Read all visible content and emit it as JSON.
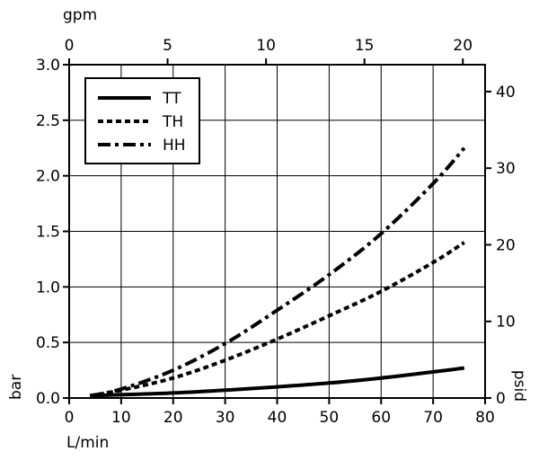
{
  "chart_data": {
    "type": "line",
    "x_axis_bottom": {
      "label": "L/min",
      "ticks": [
        0,
        10,
        20,
        30,
        40,
        50,
        60,
        70,
        80
      ],
      "range": [
        0,
        80
      ]
    },
    "x_axis_top": {
      "label": "gpm",
      "ticks": [
        0,
        5,
        10,
        15,
        20
      ],
      "range": [
        0,
        21.13
      ]
    },
    "y_axis_left": {
      "label": "bar",
      "ticks": [
        "0.0",
        "0.5",
        "1.0",
        "1.5",
        "2.0",
        "2.5",
        "3.0"
      ],
      "range": [
        0,
        3.0
      ]
    },
    "y_axis_right": {
      "label": "psid",
      "ticks": [
        0,
        10,
        20,
        30,
        40
      ],
      "range": [
        0,
        43.51
      ]
    },
    "grid": true,
    "legend_position": "top-left",
    "series": [
      {
        "name": "TT",
        "style": "solid",
        "x": [
          4,
          10,
          20,
          30,
          40,
          50,
          60,
          70,
          76
        ],
        "y": [
          0.02,
          0.03,
          0.045,
          0.07,
          0.1,
          0.135,
          0.18,
          0.235,
          0.27
        ]
      },
      {
        "name": "TH",
        "style": "dotted",
        "x": [
          4,
          10,
          20,
          30,
          40,
          50,
          60,
          70,
          76
        ],
        "y": [
          0.02,
          0.07,
          0.18,
          0.34,
          0.53,
          0.74,
          0.96,
          1.22,
          1.4
        ]
      },
      {
        "name": "HH",
        "style": "dash-dot",
        "x": [
          4,
          10,
          20,
          30,
          40,
          50,
          60,
          70,
          76
        ],
        "y": [
          0.02,
          0.08,
          0.25,
          0.49,
          0.79,
          1.11,
          1.48,
          1.93,
          2.25
        ]
      }
    ]
  }
}
